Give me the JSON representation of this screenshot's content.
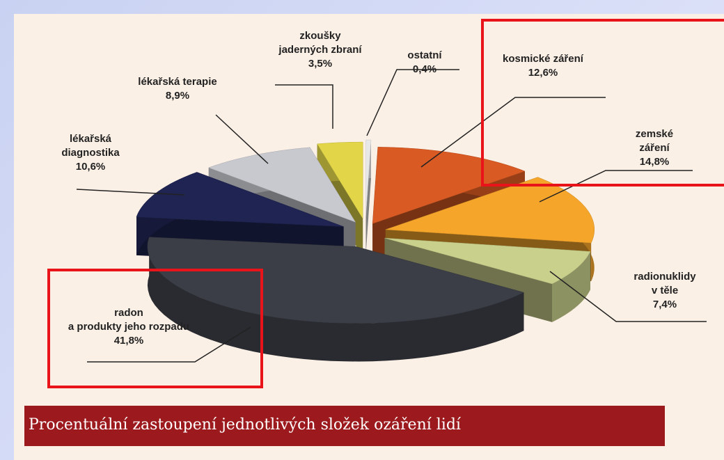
{
  "chart_data": {
    "type": "pie",
    "title": "Procentuální zastoupení jednotlivých složek ozáření lidí",
    "categories": [
      "ostatní",
      "kosmické záření",
      "zemské záření",
      "radionuklidy\nv těle",
      "radon\na produkty jeho rozpadu",
      "lékařská\ndiagnostika",
      "lékařská terapie",
      "zkoušky\njaderných zbraní"
    ],
    "values": [
      0.4,
      12.6,
      14.8,
      7.4,
      41.8,
      10.6,
      8.9,
      3.5
    ],
    "value_labels": [
      "0,4%",
      "12,6%",
      "14,8%",
      "7,4%",
      "41,8%",
      "10,6%",
      "8,9%",
      "3,5%"
    ],
    "colors": [
      "#e8e8e8",
      "#d95a22",
      "#f4a52a",
      "#c9d08c",
      "#3b3e46",
      "#1f2452",
      "#c8c9cf",
      "#e2d648"
    ]
  }
}
